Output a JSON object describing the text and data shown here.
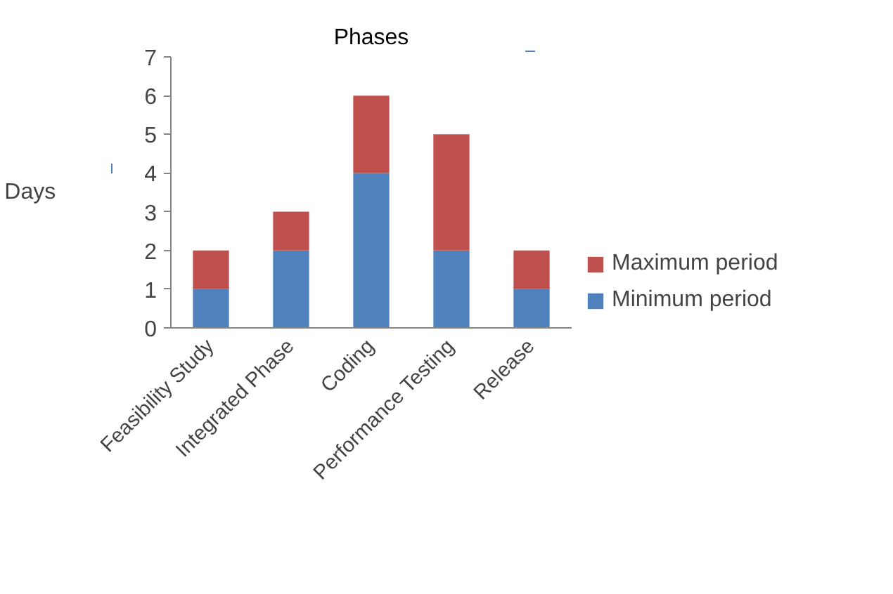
{
  "chart_data": {
    "type": "bar",
    "stacked": true,
    "title": "Phases",
    "ylabel": "Days",
    "categories": [
      "Feasibility Study",
      "Integrated Phase",
      "Coding",
      "Performance Testing",
      "Release"
    ],
    "series": [
      {
        "name": "Minimum period",
        "color": "#4f81bd",
        "values": [
          1,
          2,
          4,
          2,
          1
        ]
      },
      {
        "name": "Maximum period",
        "color": "#c0504d",
        "values": [
          1,
          1,
          2,
          3,
          1
        ]
      }
    ],
    "ylim": [
      0,
      7
    ],
    "yticks": [
      0,
      1,
      2,
      3,
      4,
      5,
      6,
      7
    ],
    "grid": false,
    "legend": "right"
  }
}
